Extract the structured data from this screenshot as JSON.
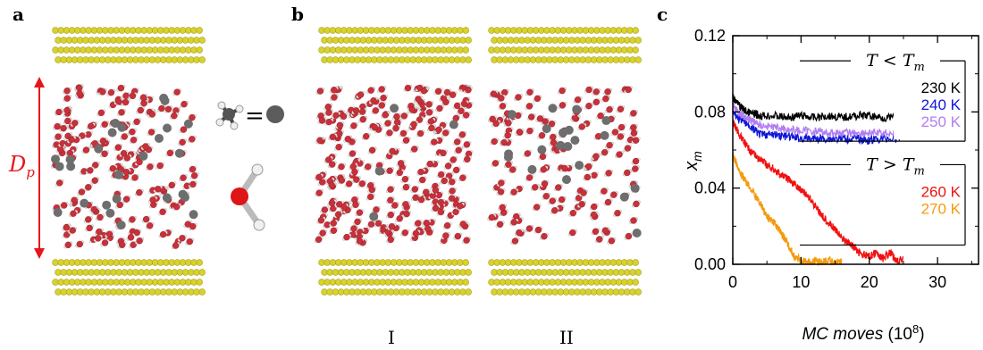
{
  "panels": {
    "a": "a",
    "b": "b",
    "c": "c"
  },
  "panel_a": {
    "dimension_label": "Dp",
    "dimension_label_main": "D",
    "dimension_label_sub": "p",
    "equals_sign": "=",
    "colors": {
      "arrow": "#e8141c",
      "substrate": "#d8d22e",
      "methane": "#6e6e6e",
      "oxygen": "#c8303a",
      "hydrogen": "#e8e8e8"
    }
  },
  "panel_b": {
    "config_labels": [
      "I",
      "II"
    ]
  },
  "chart_data": {
    "type": "line",
    "xlabel": "MC moves",
    "xlabel_unit": "(10",
    "xlabel_unit_exp": "8",
    "xlabel_unit_close": ")",
    "ylabel": "x",
    "ylabel_sub": "m",
    "xlim": [
      0,
      36
    ],
    "ylim": [
      0,
      0.12
    ],
    "x_ticks": [
      0,
      10,
      20,
      30
    ],
    "x_tick_labels": [
      "0",
      "10",
      "20",
      "30"
    ],
    "y_ticks": [
      0,
      0.04,
      0.08,
      0.12
    ],
    "y_tick_labels": [
      "0.00",
      "0.04",
      "0.08",
      "0.12"
    ],
    "group_labels": [
      {
        "text": "T < Tm",
        "main": "T < T",
        "sub": "m"
      },
      {
        "text": "T > Tm",
        "main": "T > T",
        "sub": "m"
      }
    ],
    "series": [
      {
        "name": "230 K",
        "color": "#000000",
        "x": [
          0,
          1,
          2,
          3,
          4,
          6,
          8,
          10,
          12,
          14,
          16,
          18,
          20,
          22,
          24.5
        ],
        "y": [
          0.088,
          0.083,
          0.08,
          0.079,
          0.078,
          0.078,
          0.077,
          0.078,
          0.077,
          0.078,
          0.077,
          0.078,
          0.078,
          0.077,
          0.077
        ]
      },
      {
        "name": "240 K",
        "color": "#0f17d8",
        "x": [
          0,
          1,
          2,
          3,
          4,
          6,
          8,
          10,
          12,
          14,
          16,
          18,
          20,
          22,
          24.5
        ],
        "y": [
          0.08,
          0.076,
          0.074,
          0.071,
          0.068,
          0.068,
          0.067,
          0.066,
          0.066,
          0.066,
          0.066,
          0.066,
          0.065,
          0.066,
          0.066
        ]
      },
      {
        "name": "250 K",
        "color": "#b07ef0",
        "x": [
          0,
          1,
          2,
          3,
          4,
          6,
          8,
          10,
          12,
          14,
          16,
          18,
          20,
          22,
          24.5
        ],
        "y": [
          0.084,
          0.079,
          0.077,
          0.075,
          0.073,
          0.072,
          0.071,
          0.07,
          0.07,
          0.069,
          0.069,
          0.069,
          0.069,
          0.069,
          0.069
        ]
      },
      {
        "name": "260 K",
        "color": "#f01010",
        "x": [
          0,
          1,
          2,
          3,
          4,
          5,
          6,
          7,
          8,
          9,
          10,
          11,
          12,
          13,
          14,
          15,
          16,
          17,
          18,
          19,
          20,
          21,
          22,
          23,
          24,
          25
        ],
        "y": [
          0.075,
          0.068,
          0.062,
          0.058,
          0.055,
          0.052,
          0.05,
          0.047,
          0.045,
          0.042,
          0.039,
          0.036,
          0.031,
          0.026,
          0.022,
          0.018,
          0.014,
          0.011,
          0.008,
          0.005,
          0.004,
          0.006,
          0.003,
          0.006,
          0.002,
          0.003
        ]
      },
      {
        "name": "270 K",
        "color": "#f59a0c",
        "x": [
          0,
          1,
          2,
          3,
          4,
          5,
          6,
          7,
          8,
          9,
          10,
          11,
          12,
          13,
          14,
          15,
          16
        ],
        "y": [
          0.058,
          0.048,
          0.043,
          0.038,
          0.032,
          0.025,
          0.022,
          0.017,
          0.011,
          0.004,
          0.002,
          0.001,
          0.002,
          0.001,
          0.002,
          0.001,
          0.001
        ]
      }
    ]
  }
}
